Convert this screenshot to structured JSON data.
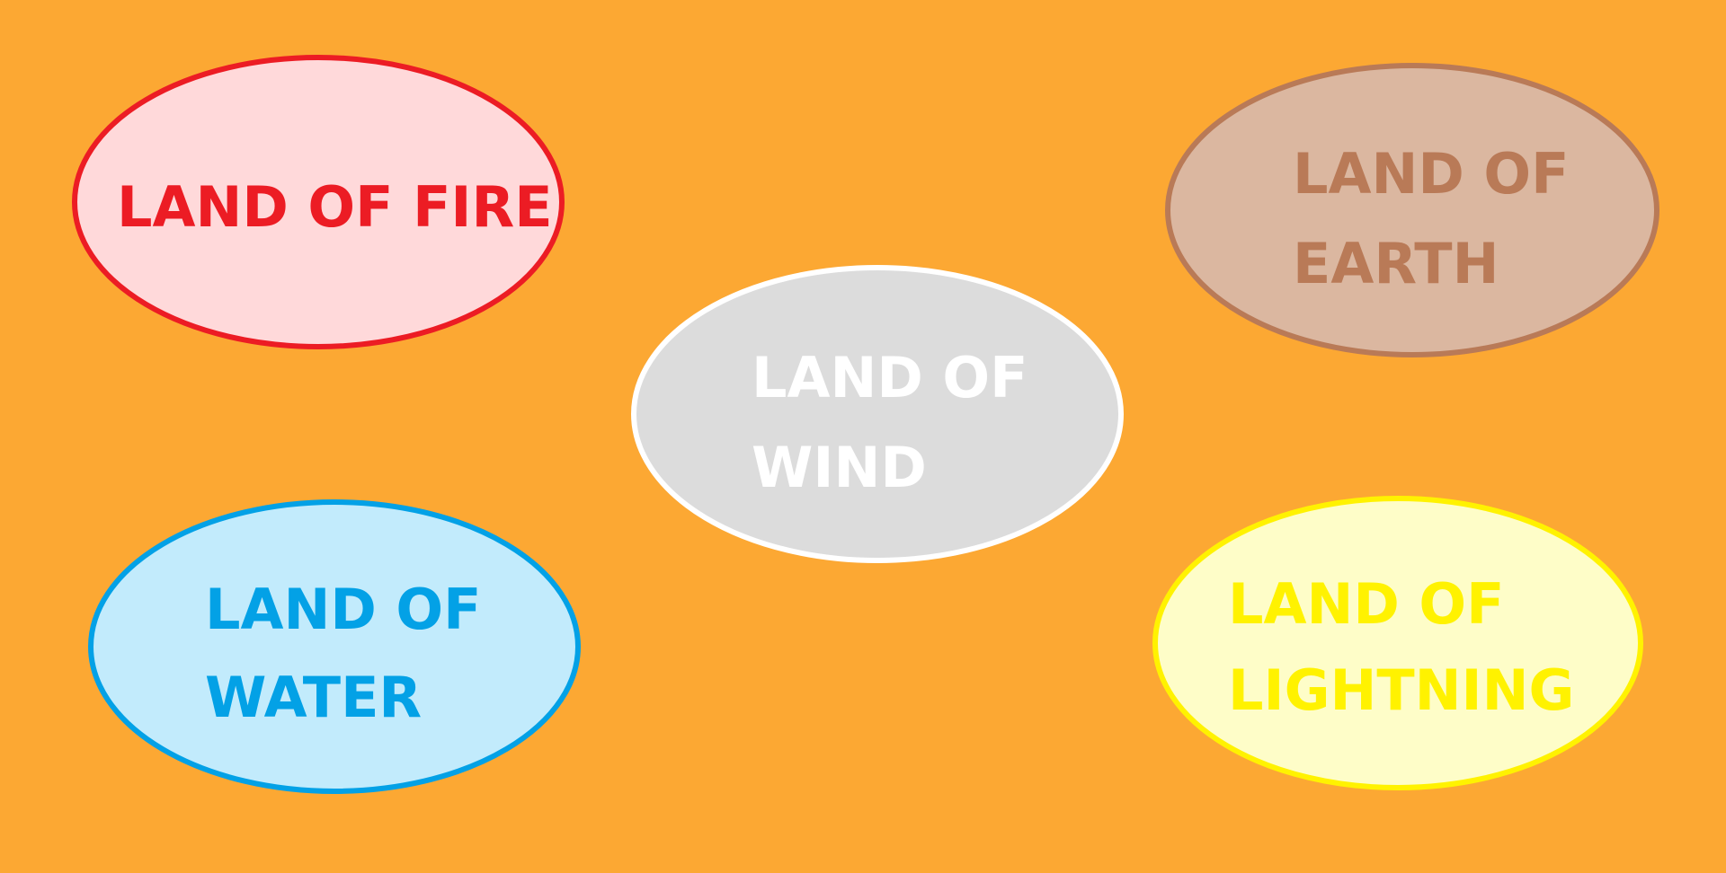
{
  "background_color": "#FCA833",
  "lands": [
    {
      "id": "fire",
      "lines": [
        "LAND OF FIRE"
      ],
      "fill_color": "#FFD9DA",
      "border_color": "#EC1C24",
      "text_color": "#EC1C24"
    },
    {
      "id": "earth",
      "lines": [
        "LAND OF",
        "EARTH"
      ],
      "fill_color": "#DBB7A0",
      "border_color": "#B97A57",
      "text_color": "#B97A57"
    },
    {
      "id": "wind",
      "lines": [
        "LAND OF",
        "WIND"
      ],
      "fill_color": "#DCDCDC",
      "border_color": "#FFFFFF",
      "text_color": "#FFFFFF"
    },
    {
      "id": "water",
      "lines": [
        "LAND OF",
        "WATER"
      ],
      "fill_color": "#C2EBFC",
      "border_color": "#03A1E6",
      "text_color": "#03A1E6"
    },
    {
      "id": "lightning",
      "lines": [
        "LAND OF",
        "LIGHTNING"
      ],
      "fill_color": "#FEFDC8",
      "border_color": "#FFF200",
      "text_color": "#FFF200"
    }
  ]
}
